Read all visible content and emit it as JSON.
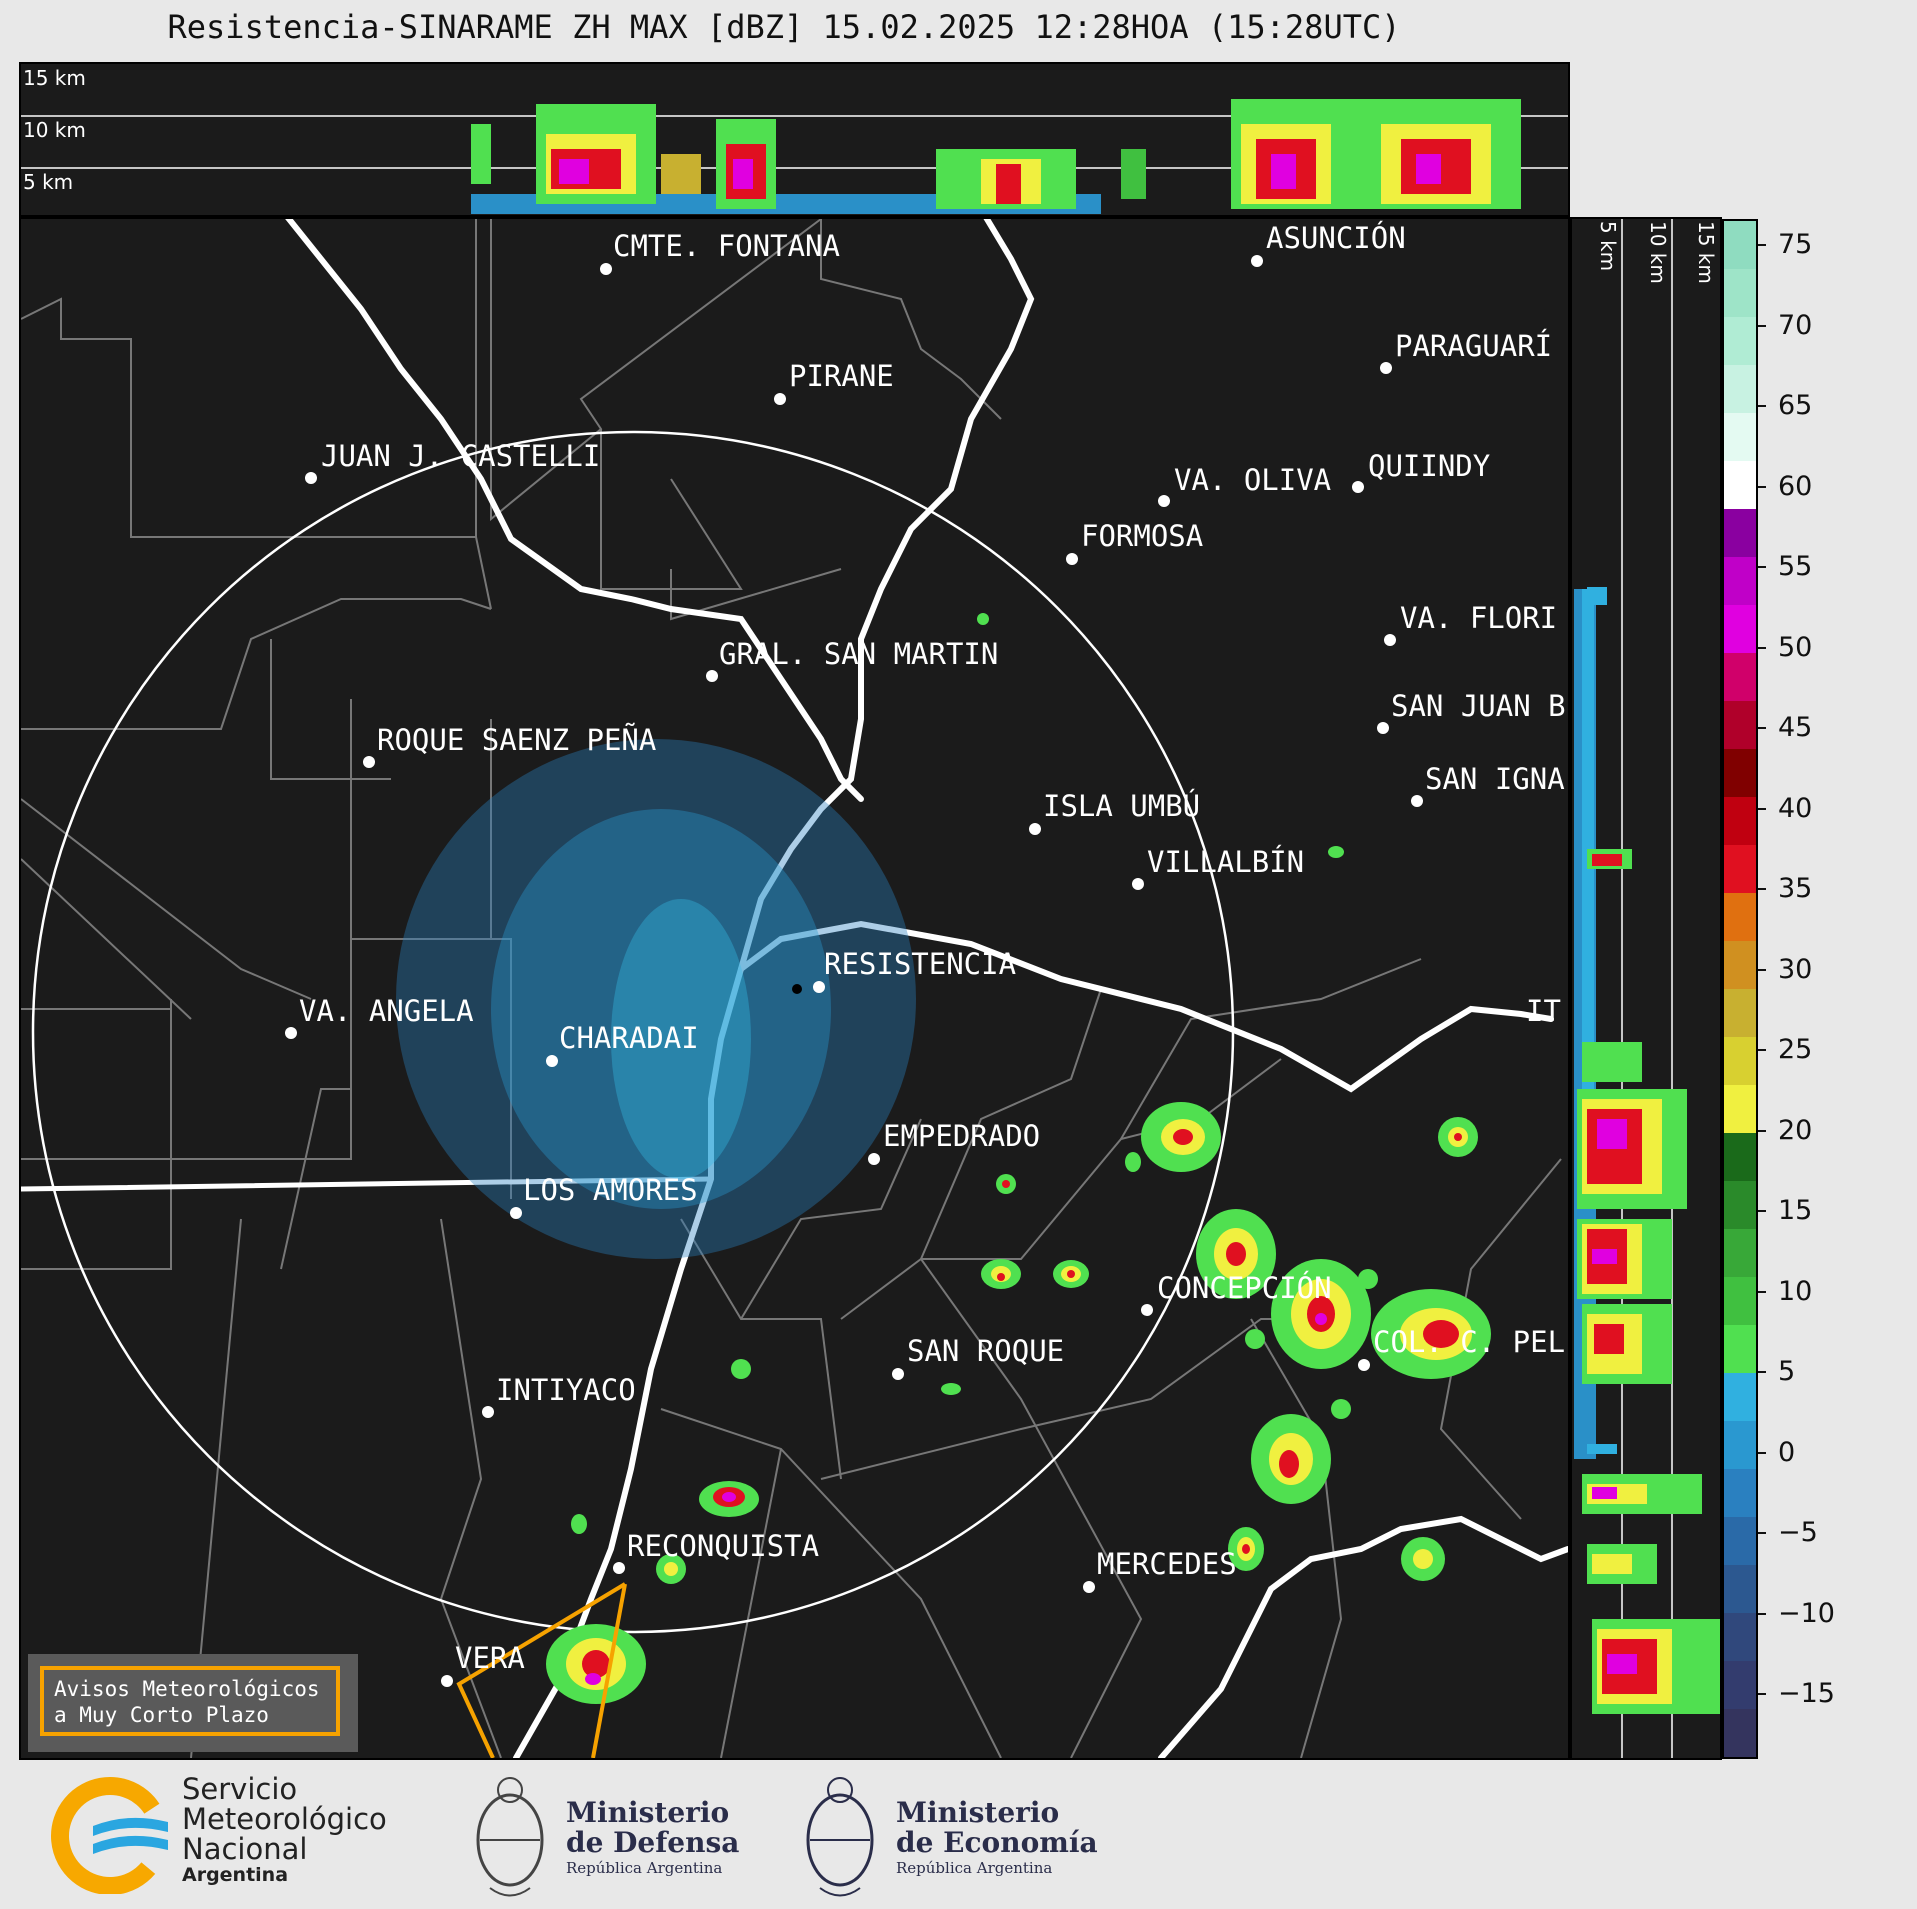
{
  "title": "Resistencia-SINARAME ZH MAX [dBZ] 15.02.2025 12:28HOA (15:28UTC)",
  "top_profile": {
    "labels": [
      "15 km",
      "10 km",
      "5 km"
    ]
  },
  "side_profile": {
    "labels": [
      "5 km",
      "10 km",
      "15 km"
    ]
  },
  "colorbar": {
    "ticks": [
      "75",
      "70",
      "65",
      "60",
      "55",
      "50",
      "45",
      "40",
      "35",
      "30",
      "25",
      "20",
      "15",
      "10",
      "5",
      "0",
      "−5",
      "−10",
      "−15"
    ],
    "colors": [
      "#8fdcc0",
      "#9ee4c8",
      "#b0ecd4",
      "#c8f2e2",
      "#e4faf2",
      "#ffffff",
      "#8a00a0",
      "#c000c8",
      "#e000e0",
      "#d0006a",
      "#b0002a",
      "#800000",
      "#c00010",
      "#e01020",
      "#e07010",
      "#d09020",
      "#c8b030",
      "#d8d030",
      "#f0f040",
      "#1a6a1a",
      "#2a8a2a",
      "#38a838",
      "#40c040",
      "#50e050",
      "#30b0e0",
      "#2a98d0",
      "#2a80c0",
      "#2a6aa8",
      "#2c5890",
      "#30487c",
      "#333c6e",
      "#34345e"
    ]
  },
  "cities": [
    {
      "name": "CMTE. FONTANA"
    },
    {
      "name": "ASUNCIÓN"
    },
    {
      "name": "PIRANE"
    },
    {
      "name": "PARAGUARÍ"
    },
    {
      "name": "JUAN J. CASTELLI"
    },
    {
      "name": "VA. OLIVA"
    },
    {
      "name": "QUIINDY"
    },
    {
      "name": "FORMOSA"
    },
    {
      "name": "VA. FLORI"
    },
    {
      "name": "GRAL. SAN MARTIN"
    },
    {
      "name": "SAN JUAN B"
    },
    {
      "name": "ROQUE SAENZ PEÑA"
    },
    {
      "name": "SAN IGNA"
    },
    {
      "name": "ISLA UMBÚ"
    },
    {
      "name": "VILLALBÍN"
    },
    {
      "name": "RESISTENCIA"
    },
    {
      "name": "IT"
    },
    {
      "name": "VA. ANGELA"
    },
    {
      "name": "CHARADAI"
    },
    {
      "name": "EMPEDRADO"
    },
    {
      "name": "LOS AMORES"
    },
    {
      "name": "CONCEPCIÓN"
    },
    {
      "name": "SAN ROQUE"
    },
    {
      "name": "COL. C. PEL"
    },
    {
      "name": "INTIYACO"
    },
    {
      "name": "RECONQUISTA"
    },
    {
      "name": "MERCEDES"
    },
    {
      "name": "VERA"
    }
  ],
  "alert_box": {
    "line1": "Avisos Meteorológicos",
    "line2": "a Muy Corto Plazo"
  },
  "footer": {
    "smn": {
      "line1": "Servicio",
      "line2": "Meteorológico",
      "line3": "Nacional",
      "line4": "Argentina"
    },
    "defensa": {
      "line1": "Ministerio",
      "line2": "de Defensa",
      "line3": "República Argentina"
    },
    "economia": {
      "line1": "Ministerio",
      "line2": "de Economía",
      "line3": "República Argentina"
    }
  }
}
